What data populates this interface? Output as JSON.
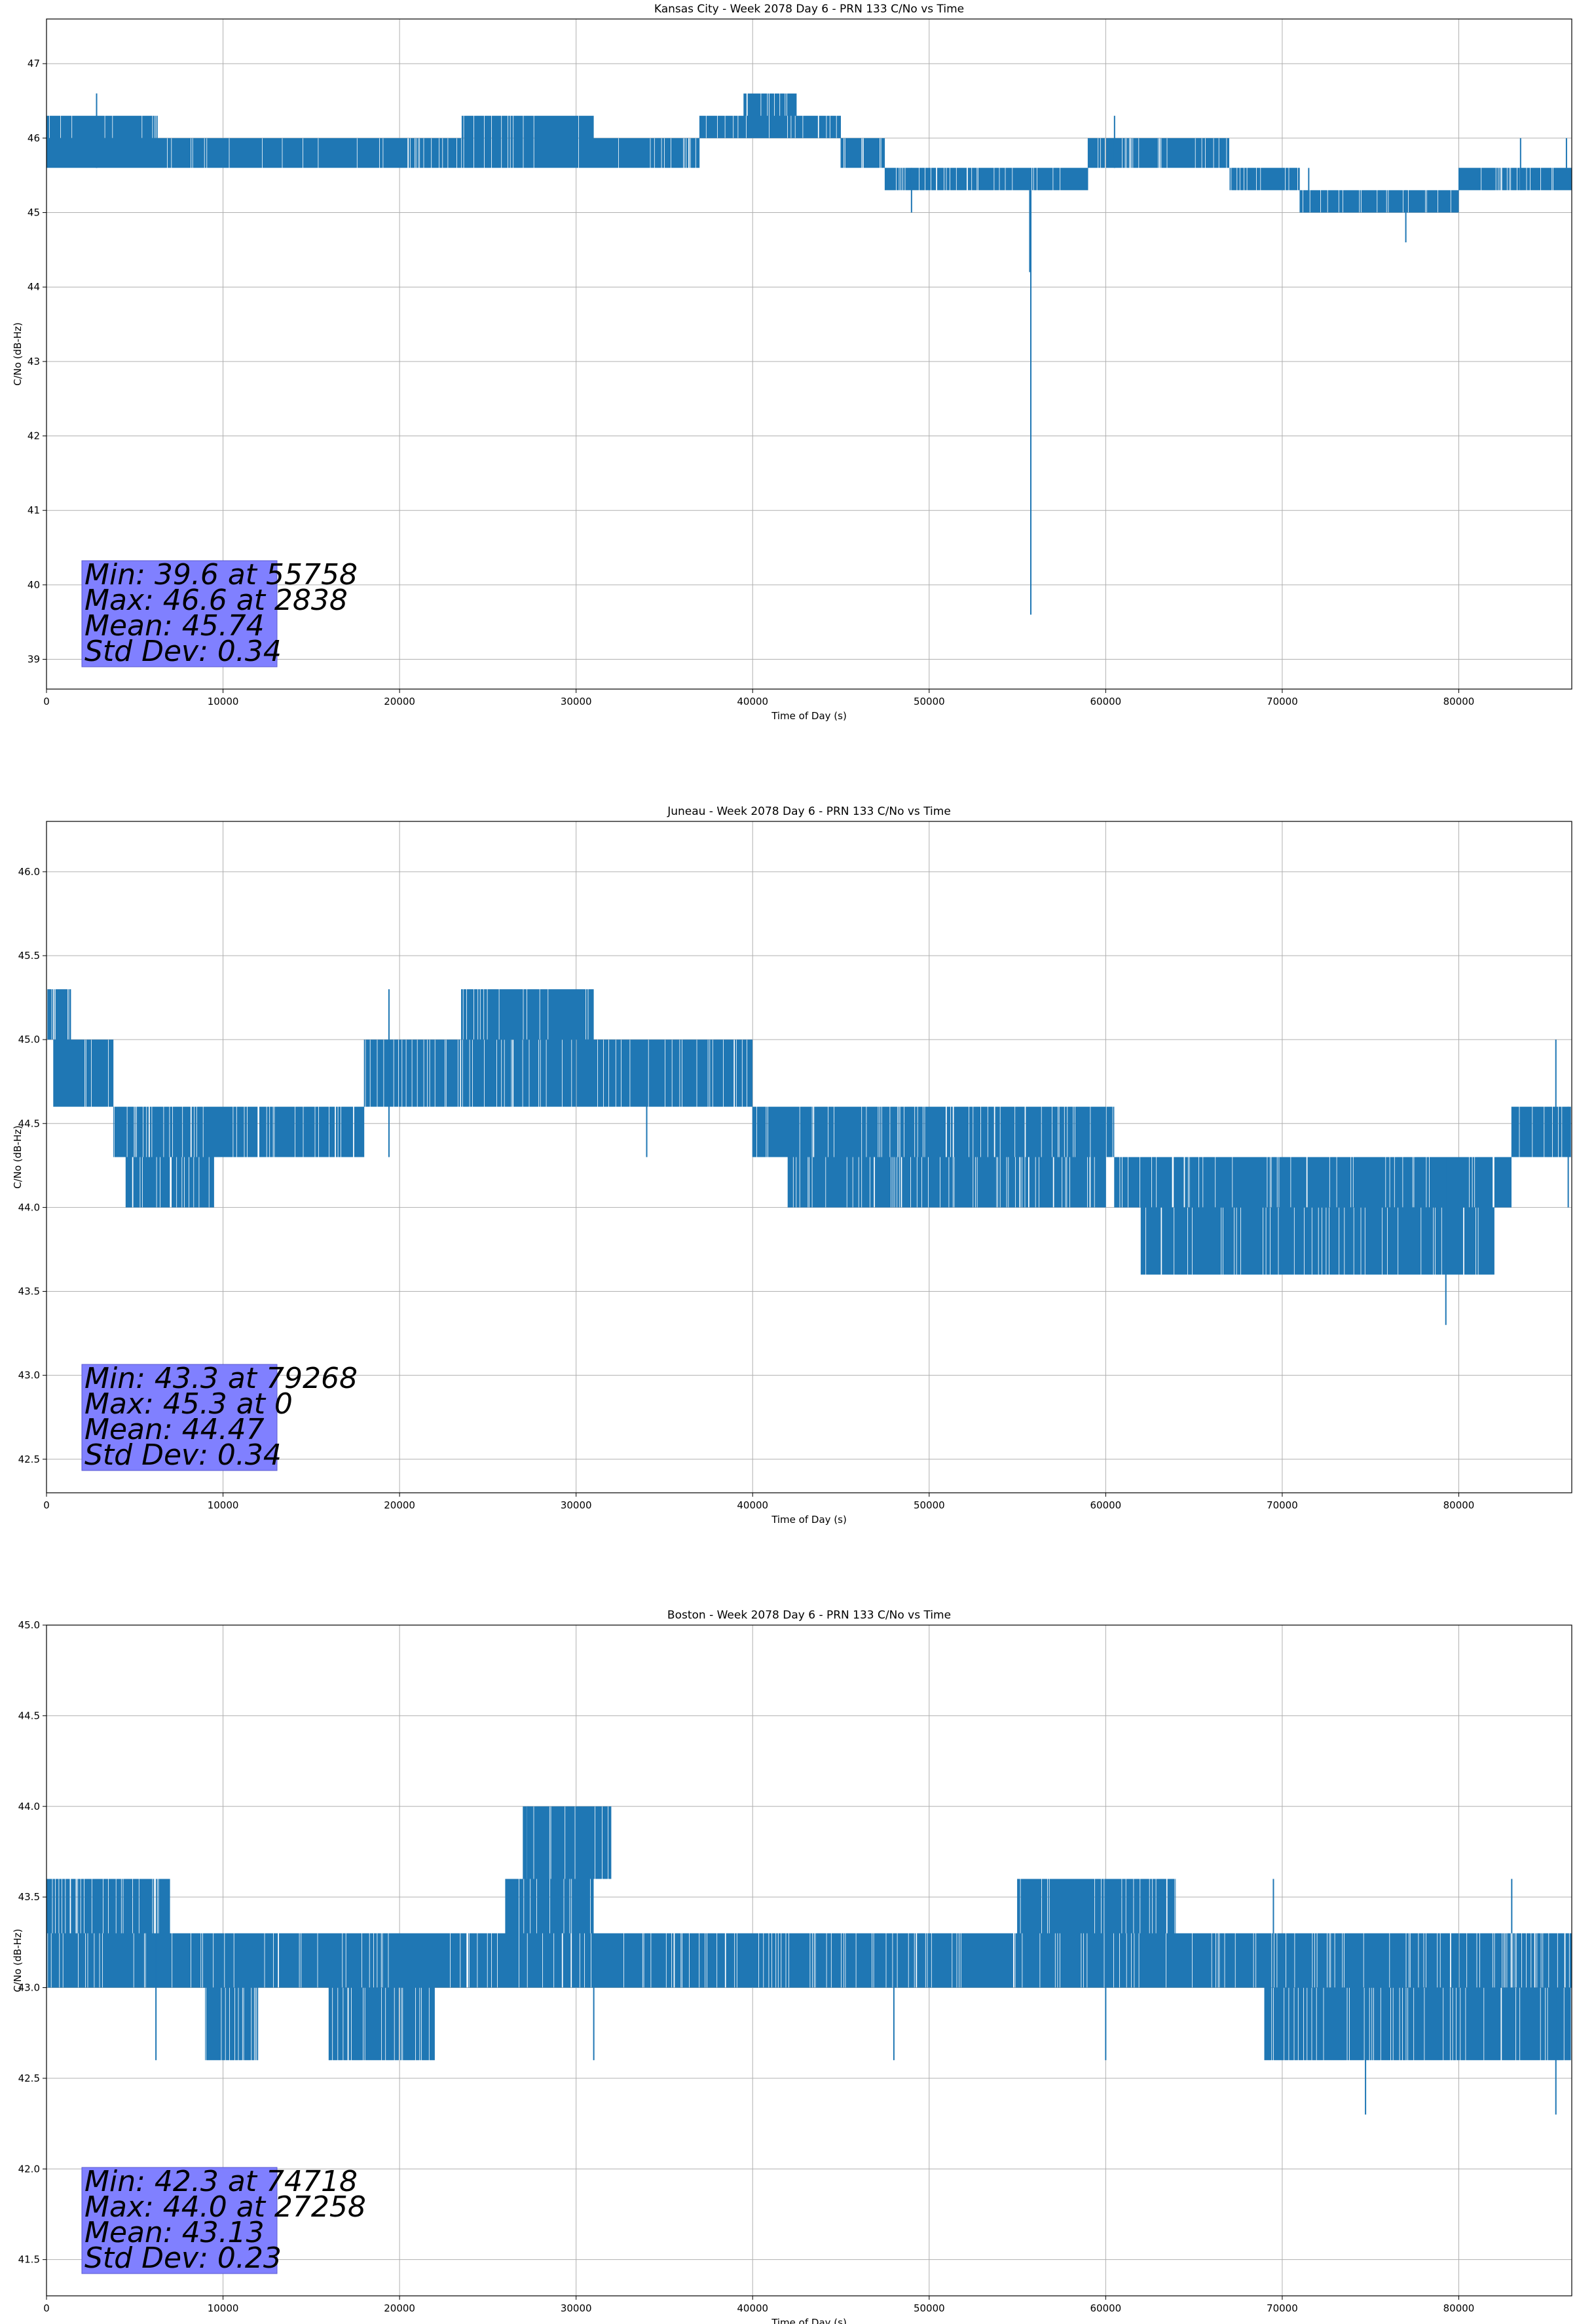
{
  "colors": {
    "series": "#1f77b4",
    "grid": "#b0b0b0",
    "stats_box": "#8080ff",
    "axes": "#000000"
  },
  "chart_data": [
    {
      "type": "line",
      "title": "Kansas City - Week 2078 Day 6 - PRN 133 C/No vs Time",
      "xlabel": "Time of Day (s)",
      "ylabel": "C/No (dB-Hz)",
      "xlim": [
        0,
        86400
      ],
      "ylim": [
        38.6,
        47.6
      ],
      "grid": true,
      "xticks": [
        0,
        10000,
        20000,
        30000,
        40000,
        50000,
        60000,
        70000,
        80000
      ],
      "xtick_labels": [
        "0",
        "10000",
        "20000",
        "30000",
        "40000",
        "50000",
        "60000",
        "70000",
        "80000"
      ],
      "yticks": [
        39,
        40,
        41,
        42,
        43,
        44,
        45,
        46,
        47
      ],
      "ytick_labels": [
        "39",
        "40",
        "41",
        "42",
        "43",
        "44",
        "45",
        "46",
        "47"
      ],
      "stats": [
        "Min: 39.6 at 55758",
        "Max: 46.6 at 2838",
        "Mean: 45.74",
        "Std Dev: 0.34"
      ],
      "bands": [
        {
          "x0": 0,
          "x1": 23500,
          "low": 45.6,
          "high": 46.0
        },
        {
          "x0": 0,
          "x1": 6300,
          "low": 45.6,
          "high": 46.3
        },
        {
          "x0": 23500,
          "x1": 31000,
          "low": 45.6,
          "high": 46.3
        },
        {
          "x0": 31000,
          "x1": 37000,
          "low": 45.6,
          "high": 46.0
        },
        {
          "x0": 37000,
          "x1": 45000,
          "low": 46.0,
          "high": 46.3
        },
        {
          "x0": 39500,
          "x1": 42500,
          "low": 46.3,
          "high": 46.6
        },
        {
          "x0": 45000,
          "x1": 47500,
          "low": 45.6,
          "high": 46.0
        },
        {
          "x0": 47500,
          "x1": 59000,
          "low": 45.3,
          "high": 45.6
        },
        {
          "x0": 59000,
          "x1": 67000,
          "low": 45.6,
          "high": 46.0
        },
        {
          "x0": 67000,
          "x1": 71000,
          "low": 45.3,
          "high": 45.6
        },
        {
          "x0": 71000,
          "x1": 80000,
          "low": 45.0,
          "high": 45.3
        },
        {
          "x0": 80000,
          "x1": 86400,
          "low": 45.3,
          "high": 45.6
        }
      ],
      "spikes": [
        {
          "x": 2838,
          "low": 45.6,
          "high": 46.6
        },
        {
          "x": 49000,
          "low": 45.0,
          "high": 45.6
        },
        {
          "x": 55700,
          "low": 44.2,
          "high": 45.3
        },
        {
          "x": 55758,
          "low": 39.6,
          "high": 45.3
        },
        {
          "x": 60500,
          "low": 45.6,
          "high": 46.3
        },
        {
          "x": 71500,
          "low": 45.0,
          "high": 45.6
        },
        {
          "x": 77000,
          "low": 44.6,
          "high": 45.3
        },
        {
          "x": 83500,
          "low": 45.3,
          "high": 46.0
        },
        {
          "x": 86100,
          "low": 45.6,
          "high": 46.0
        }
      ]
    },
    {
      "type": "line",
      "title": "Juneau - Week 2078 Day 6 - PRN 133 C/No vs Time",
      "xlabel": "Time of Day (s)",
      "ylabel": "C/No (dB-Hz)",
      "xlim": [
        0,
        86400
      ],
      "ylim": [
        42.3,
        46.3
      ],
      "grid": true,
      "xticks": [
        0,
        10000,
        20000,
        30000,
        40000,
        50000,
        60000,
        70000,
        80000
      ],
      "xtick_labels": [
        "0",
        "10000",
        "20000",
        "30000",
        "40000",
        "50000",
        "60000",
        "70000",
        "80000"
      ],
      "yticks": [
        42.5,
        43.0,
        43.5,
        44.0,
        44.5,
        45.0,
        45.5,
        46.0
      ],
      "ytick_labels": [
        "42.5",
        "43.0",
        "43.5",
        "44.0",
        "44.5",
        "45.0",
        "45.5",
        "46.0"
      ],
      "stats": [
        "Min: 43.3 at 79268",
        "Max: 45.3 at 0",
        "Mean: 44.47",
        "Std Dev: 0.34"
      ],
      "bands": [
        {
          "x0": 0,
          "x1": 1400,
          "low": 45.0,
          "high": 45.3
        },
        {
          "x0": 400,
          "x1": 3800,
          "low": 44.6,
          "high": 45.0
        },
        {
          "x0": 3800,
          "x1": 10000,
          "low": 44.3,
          "high": 44.6
        },
        {
          "x0": 4500,
          "x1": 9500,
          "low": 44.0,
          "high": 44.3
        },
        {
          "x0": 10000,
          "x1": 18000,
          "low": 44.3,
          "high": 44.6
        },
        {
          "x0": 18000,
          "x1": 23500,
          "low": 44.6,
          "high": 45.0
        },
        {
          "x0": 23500,
          "x1": 33500,
          "low": 44.6,
          "high": 45.0
        },
        {
          "x0": 23500,
          "x1": 31000,
          "low": 45.0,
          "high": 45.3
        },
        {
          "x0": 33500,
          "x1": 40000,
          "low": 44.6,
          "high": 45.0
        },
        {
          "x0": 40000,
          "x1": 60500,
          "low": 44.3,
          "high": 44.6
        },
        {
          "x0": 42000,
          "x1": 60000,
          "low": 44.0,
          "high": 44.3
        },
        {
          "x0": 60500,
          "x1": 83000,
          "low": 44.0,
          "high": 44.3
        },
        {
          "x0": 62000,
          "x1": 82000,
          "low": 43.6,
          "high": 44.0
        },
        {
          "x0": 83000,
          "x1": 86400,
          "low": 44.3,
          "high": 44.6
        }
      ],
      "spikes": [
        {
          "x": 19400,
          "low": 44.3,
          "high": 45.3
        },
        {
          "x": 34000,
          "low": 44.3,
          "high": 45.0
        },
        {
          "x": 79268,
          "low": 43.3,
          "high": 44.3
        },
        {
          "x": 85500,
          "low": 44.3,
          "high": 45.0
        },
        {
          "x": 86200,
          "low": 44.0,
          "high": 44.6
        }
      ]
    },
    {
      "type": "line",
      "title": "Boston - Week 2078 Day 6 - PRN 133 C/No vs Time",
      "xlabel": "Time of Day (s)",
      "ylabel": "C/No (dB-Hz)",
      "xlim": [
        0,
        86400
      ],
      "ylim": [
        41.3,
        45.0
      ],
      "grid": true,
      "xticks": [
        0,
        10000,
        20000,
        30000,
        40000,
        50000,
        60000,
        70000,
        80000
      ],
      "xtick_labels": [
        "0",
        "10000",
        "20000",
        "30000",
        "40000",
        "50000",
        "60000",
        "70000",
        "80000"
      ],
      "yticks": [
        41.5,
        42.0,
        42.5,
        43.0,
        43.5,
        44.0,
        44.5,
        45.0
      ],
      "ytick_labels": [
        "41.5",
        "42.0",
        "42.5",
        "43.0",
        "43.5",
        "44.0",
        "44.5",
        "45.0"
      ],
      "stats": [
        "Min: 42.3 at 74718",
        "Max: 44.0 at 27258",
        "Mean: 43.13",
        "Std Dev: 0.23"
      ],
      "bands": [
        {
          "x0": 0,
          "x1": 26000,
          "low": 43.0,
          "high": 43.3
        },
        {
          "x0": 0,
          "x1": 7000,
          "low": 43.3,
          "high": 43.6
        },
        {
          "x0": 9000,
          "x1": 12000,
          "low": 42.6,
          "high": 43.0
        },
        {
          "x0": 16000,
          "x1": 22000,
          "low": 42.6,
          "high": 43.0
        },
        {
          "x0": 26000,
          "x1": 31000,
          "low": 43.3,
          "high": 43.6
        },
        {
          "x0": 26000,
          "x1": 32000,
          "low": 43.0,
          "high": 43.3
        },
        {
          "x0": 27000,
          "x1": 32000,
          "low": 43.6,
          "high": 44.0
        },
        {
          "x0": 31000,
          "x1": 64000,
          "low": 43.0,
          "high": 43.3
        },
        {
          "x0": 55000,
          "x1": 64000,
          "low": 43.3,
          "high": 43.6
        },
        {
          "x0": 64000,
          "x1": 69000,
          "low": 43.0,
          "high": 43.3
        },
        {
          "x0": 69000,
          "x1": 86400,
          "low": 43.0,
          "high": 43.3
        },
        {
          "x0": 69000,
          "x1": 86400,
          "low": 42.6,
          "high": 43.0
        }
      ],
      "spikes": [
        {
          "x": 6200,
          "low": 42.6,
          "high": 43.3
        },
        {
          "x": 27258,
          "low": 43.3,
          "high": 44.0
        },
        {
          "x": 31000,
          "low": 42.6,
          "high": 43.3
        },
        {
          "x": 48000,
          "low": 42.6,
          "high": 43.3
        },
        {
          "x": 60000,
          "low": 42.6,
          "high": 43.3
        },
        {
          "x": 69500,
          "low": 43.3,
          "high": 43.6
        },
        {
          "x": 74718,
          "low": 42.3,
          "high": 43.0
        },
        {
          "x": 83000,
          "low": 43.3,
          "high": 43.6
        },
        {
          "x": 85500,
          "low": 42.3,
          "high": 43.0
        }
      ]
    }
  ]
}
